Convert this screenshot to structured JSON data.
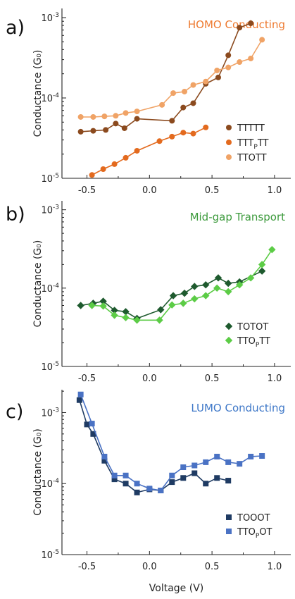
{
  "chart_data": [
    {
      "panel": "a)",
      "type": "line",
      "title": "HOMO Conducting",
      "title_color": "#ee7a30",
      "ylabel": "Conductance (G₀)",
      "xlabel": "",
      "yscale": "log",
      "ylim": [
        1e-05,
        0.0013
      ],
      "xlim": [
        -0.7,
        1.13
      ],
      "xticks": [
        "-0.5",
        "0.0",
        "0.5",
        "1.0"
      ],
      "yticks": [
        "10⁻⁵",
        "10⁻⁴",
        "10⁻³"
      ],
      "marker": "circle",
      "legend_position": "bottom-right",
      "series": [
        {
          "name": "TTTTT",
          "color": "#8b4a1e",
          "x": [
            -0.55,
            -0.45,
            -0.35,
            -0.27,
            -0.2,
            -0.1,
            0.18,
            0.27,
            0.35,
            0.45,
            0.55,
            0.63,
            0.72,
            0.81
          ],
          "y": [
            3.8e-05,
            3.9e-05,
            4e-05,
            4.8e-05,
            4.2e-05,
            5.5e-05,
            5.2e-05,
            7.6e-05,
            8.6e-05,
            0.00015,
            0.00018,
            0.00034,
            0.00075,
            0.00085
          ]
        },
        {
          "name": "TTTₚTT",
          "color": "#e36a1e",
          "x": [
            -0.46,
            -0.37,
            -0.28,
            -0.19,
            -0.1,
            0.08,
            0.18,
            0.27,
            0.35,
            0.45
          ],
          "y": [
            1.1e-05,
            1.3e-05,
            1.5e-05,
            1.8e-05,
            2.2e-05,
            2.9e-05,
            3.3e-05,
            3.7e-05,
            3.6e-05,
            4.3e-05
          ],
          "note": "Series label: TTT with subscript P, then TT"
        },
        {
          "name": "TTOTT",
          "color": "#f0a366",
          "x": [
            -0.55,
            -0.45,
            -0.36,
            -0.27,
            -0.19,
            -0.1,
            0.1,
            0.19,
            0.28,
            0.35,
            0.45,
            0.54,
            0.63,
            0.72,
            0.81,
            0.9
          ],
          "y": [
            5.8e-05,
            5.8e-05,
            5.9e-05,
            6e-05,
            6.5e-05,
            6.8e-05,
            8.2e-05,
            0.000115,
            0.00012,
            0.000145,
            0.00016,
            0.00022,
            0.00024,
            0.00028,
            0.00031,
            0.00053
          ]
        }
      ]
    },
    {
      "panel": "b)",
      "type": "line",
      "title": "Mid-gap Transport",
      "title_color": "#3c9a3c",
      "ylabel": "Conductance (G₀)",
      "xlabel": "",
      "yscale": "log",
      "ylim": [
        1e-05,
        0.0013
      ],
      "xlim": [
        -0.7,
        1.13
      ],
      "xticks": [
        "-0.5",
        "0.0",
        "0.5",
        "1.0"
      ],
      "yticks": [
        "10⁻⁵",
        "10⁻⁴",
        "10⁻³"
      ],
      "marker": "diamond",
      "legend_position": "bottom-right",
      "series": [
        {
          "name": "TOTOT",
          "color": "#1e5a2e",
          "x": [
            -0.55,
            -0.45,
            -0.37,
            -0.28,
            -0.19,
            -0.1,
            0.09,
            0.19,
            0.28,
            0.36,
            0.45,
            0.55,
            0.63,
            0.72,
            0.9
          ],
          "y": [
            6e-05,
            6.4e-05,
            6.8e-05,
            5.2e-05,
            5e-05,
            4.1e-05,
            5.3e-05,
            8e-05,
            8.6e-05,
            0.000105,
            0.00011,
            0.000135,
            0.000115,
            0.00012,
            0.000165
          ]
        },
        {
          "name": "TTOₚTT",
          "color": "#5ccc46",
          "x": [
            -0.46,
            -0.37,
            -0.28,
            -0.19,
            -0.1,
            0.08,
            0.18,
            0.27,
            0.36,
            0.45,
            0.54,
            0.63,
            0.72,
            0.81,
            0.9,
            0.98
          ],
          "y": [
            6e-05,
            5.9e-05,
            4.5e-05,
            4.2e-05,
            3.9e-05,
            3.9e-05,
            6.1e-05,
            6.4e-05,
            7.3e-05,
            8e-05,
            0.0001,
            9e-05,
            0.00011,
            0.000135,
            0.0002,
            0.00031
          ]
        }
      ]
    },
    {
      "panel": "c)",
      "type": "line",
      "title": "LUMO Conducting",
      "title_color": "#3f78c8",
      "ylabel": "Conductance (G₀)",
      "xlabel": "Voltage (V)",
      "yscale": "log",
      "ylim": [
        1e-05,
        0.0021
      ],
      "xlim": [
        -0.7,
        1.13
      ],
      "xticks": [
        "-0.5",
        "0.0",
        "0.5",
        "1.0"
      ],
      "yticks": [
        "10⁻⁵",
        "10⁻⁴",
        "10⁻³"
      ],
      "marker": "square",
      "legend_position": "bottom-right",
      "series": [
        {
          "name": "TOOOT",
          "color": "#1f3b63",
          "x": [
            -0.56,
            -0.5,
            -0.45,
            -0.36,
            -0.28,
            -0.19,
            -0.1,
            0.0,
            0.09,
            0.18,
            0.27,
            0.36,
            0.45,
            0.54,
            0.63
          ],
          "y": [
            0.0015,
            0.00068,
            0.0005,
            0.00021,
            0.000115,
            0.0001,
            7.5e-05,
            8.3e-05,
            8e-05,
            0.000105,
            0.00012,
            0.00014,
            0.0001,
            0.00012,
            0.00011
          ]
        },
        {
          "name": "TTOₚOT",
          "color": "#4a72c4",
          "x": [
            -0.55,
            -0.46,
            -0.36,
            -0.28,
            -0.19,
            -0.1,
            0.0,
            0.09,
            0.18,
            0.27,
            0.36,
            0.45,
            0.54,
            0.63,
            0.72,
            0.81,
            0.9
          ],
          "y": [
            0.0018,
            0.0007,
            0.00024,
            0.00013,
            0.00013,
            0.0001,
            8.5e-05,
            8e-05,
            0.00013,
            0.00017,
            0.00018,
            0.0002,
            0.00024,
            0.0002,
            0.00019,
            0.00024,
            0.000245
          ]
        }
      ]
    }
  ],
  "labels": {
    "ytick_e": "10",
    "yticks_exp": [
      "-5",
      "-4",
      "-3"
    ],
    "legend_a": [
      {
        "main": "TTTTT"
      },
      {
        "main": "TTT",
        "sub": "P",
        "tail": "TT"
      },
      {
        "main": "TTOTT"
      }
    ],
    "legend_b": [
      {
        "main": "TOTOT"
      },
      {
        "main": "TTO",
        "sub": "P",
        "tail": "TT"
      }
    ],
    "legend_c": [
      {
        "main": "TOOOT"
      },
      {
        "main": "TTO",
        "sub": "P",
        "tail": "OT"
      }
    ]
  }
}
